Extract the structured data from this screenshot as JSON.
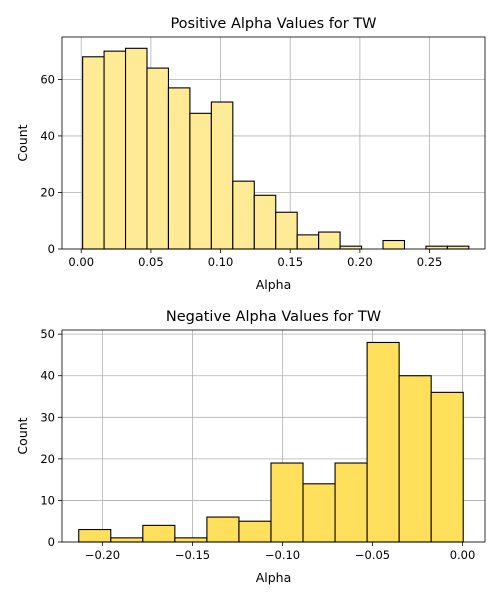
{
  "chart_data": [
    {
      "type": "bar",
      "title": "Positive Alpha Values for TW",
      "xlabel": "Alpha",
      "ylabel": "Count",
      "xlim": [
        -0.0138,
        0.2898
      ],
      "ylim": [
        0,
        75
      ],
      "grid": true,
      "bar_color": "#ffea96",
      "edge_color": "#000000",
      "x_ticks": [
        0.0,
        0.05,
        0.1,
        0.15,
        0.2,
        0.25
      ],
      "x_tick_labels": [
        "0.00",
        "0.05",
        "0.10",
        "0.15",
        "0.20",
        "0.25"
      ],
      "y_ticks": [
        0,
        20,
        40,
        60
      ],
      "y_tick_labels": [
        "0",
        "20",
        "40",
        "60"
      ],
      "bin_edges": [
        0.001,
        0.0164,
        0.0318,
        0.0472,
        0.0626,
        0.078,
        0.0934,
        0.1088,
        0.1242,
        0.1396,
        0.155,
        0.1704,
        0.1858,
        0.2012,
        0.2166,
        0.232,
        0.2474,
        0.2628,
        0.2782
      ],
      "values": [
        68,
        70,
        71,
        64,
        57,
        48,
        52,
        24,
        19,
        13,
        5,
        6,
        1,
        0,
        3,
        0,
        1,
        1
      ]
    },
    {
      "type": "bar",
      "title": "Negative Alpha Values for TW",
      "xlabel": "Alpha",
      "ylabel": "Count",
      "xlim": [
        -0.2225,
        0.0125
      ],
      "ylim": [
        0,
        51
      ],
      "grid": true,
      "bar_color": "#ffe05c",
      "edge_color": "#000000",
      "x_ticks": [
        -0.2,
        -0.15,
        -0.1,
        -0.05,
        0.0
      ],
      "x_tick_labels": [
        "−0.20",
        "−0.15",
        "−0.10",
        "−0.05",
        "0.00"
      ],
      "y_ticks": [
        0,
        10,
        20,
        30,
        40,
        50
      ],
      "y_tick_labels": [
        "0",
        "10",
        "20",
        "30",
        "40",
        "50"
      ],
      "bin_edges": [
        -0.2132,
        -0.1954,
        -0.1776,
        -0.1598,
        -0.142,
        -0.1242,
        -0.1064,
        -0.0886,
        -0.0708,
        -0.053,
        -0.0352,
        -0.0174,
        0.0004
      ],
      "values": [
        3,
        1,
        4,
        1,
        6,
        5,
        19,
        14,
        19,
        48,
        40,
        36
      ]
    }
  ]
}
